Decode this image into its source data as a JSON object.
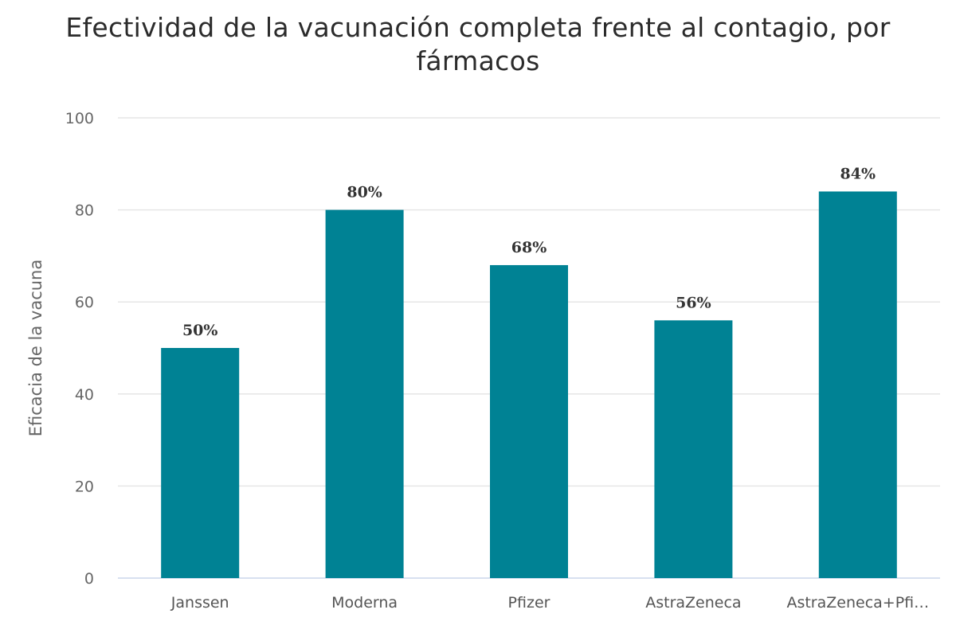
{
  "chart_data": {
    "type": "bar",
    "title": "Efectividad de la vacunación completa frente al contagio, por fármacos",
    "ylabel": "Eficacia de la vacuna",
    "xlabel": "",
    "categories": [
      "Janssen",
      "Moderna",
      "Pfizer",
      "AstraZeneca",
      "AstraZeneca+Pfi…"
    ],
    "values": [
      50,
      80,
      68,
      56,
      84
    ],
    "data_labels": [
      "50%",
      "80%",
      "68%",
      "56%",
      "84%"
    ],
    "ylim": [
      0,
      100
    ],
    "yticks": [
      "0",
      "20",
      "40",
      "60",
      "80",
      "100"
    ],
    "grid": true,
    "legend": "none",
    "bar_color": "#008294"
  }
}
